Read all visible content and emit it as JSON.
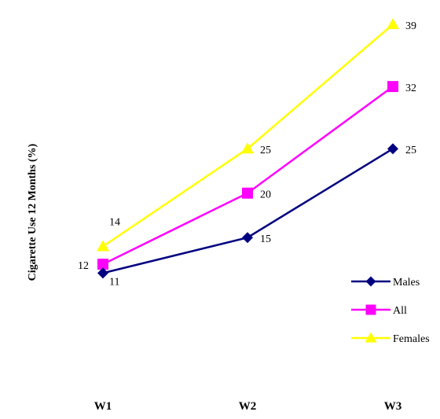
{
  "chart_data": {
    "type": "line",
    "title": "",
    "xlabel": "",
    "ylabel": "Cigarette Use 12 Months (%)",
    "categories": [
      "W1",
      "W2",
      "W3"
    ],
    "ylim": [
      0,
      40
    ],
    "grid": false,
    "legend": "right",
    "series": [
      {
        "name": "Males",
        "values": [
          11,
          15,
          25
        ],
        "color": "#000080",
        "marker": "diamond"
      },
      {
        "name": "All",
        "values": [
          12,
          20,
          32
        ],
        "color": "#ff00ff",
        "marker": "square"
      },
      {
        "name": "Females",
        "values": [
          14,
          25,
          39
        ],
        "color": "#ffff00",
        "marker": "triangle"
      }
    ]
  }
}
